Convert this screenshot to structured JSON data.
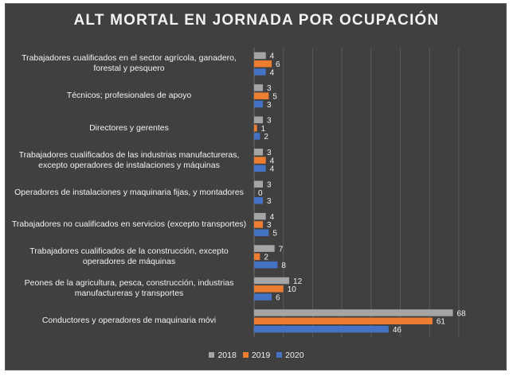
{
  "chart_data": {
    "type": "bar",
    "orientation": "horizontal",
    "title": "ALT MORTAL EN JORNADA POR OCUPACIÓN",
    "categories": [
      "Trabajadores cualificados en el sector agrícola, ganadero, forestal y pesquero",
      "Técnicos; profesionales de apoyo",
      "Directores y gerentes",
      "Trabajadores cualificados de las industrias manufactureras, excepto operadores de instalaciones y máquinas",
      "Operadores de instalaciones y maquinaria fijas, y montadores",
      "Trabajadores no cualificados en servicios (excepto transportes)",
      "Trabajadores cualificados de la construcción, excepto operadores de máquinas",
      "Peones de la agricultura, pesca, construcción, industrias manufactureras y transportes",
      "Conductores y operadores de maquinaria móvi"
    ],
    "series": [
      {
        "name": "2018",
        "color": "#a5a5a5",
        "values": [
          4,
          3,
          3,
          3,
          3,
          4,
          7,
          12,
          68
        ]
      },
      {
        "name": "2019",
        "color": "#ed7d31",
        "values": [
          6,
          5,
          1,
          4,
          0,
          3,
          2,
          10,
          61
        ]
      },
      {
        "name": "2020",
        "color": "#4472c4",
        "values": [
          4,
          3,
          2,
          4,
          3,
          5,
          8,
          6,
          46
        ]
      }
    ],
    "xlim": [
      0,
      70
    ],
    "grid": true,
    "legend_position": "bottom"
  }
}
